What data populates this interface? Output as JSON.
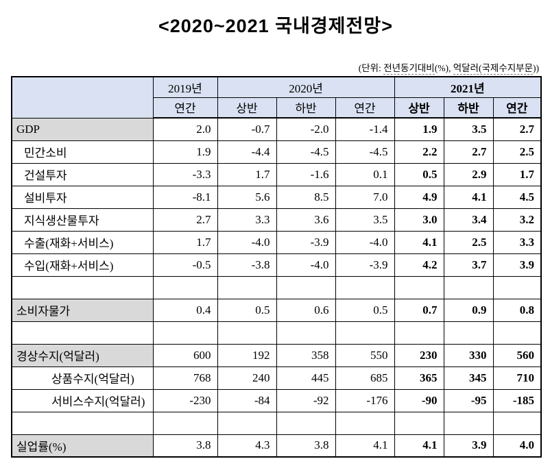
{
  "page": {
    "title": "<2020~2021  국내경제전망>",
    "unit_note": {
      "prefix": "(단위: ",
      "part1": "전년동기대비",
      "mid": "(%), ",
      "part2": "억달러(국제수지부문",
      "suffix": "))"
    }
  },
  "table": {
    "year_headers": [
      "2019년",
      "2020년",
      "2021년"
    ],
    "subheaders": [
      "연간",
      "상반",
      "하반",
      "연간",
      "상반",
      "하반",
      "연간"
    ],
    "colors": {
      "header_bg": "#d9e1f2",
      "shaded_label_bg": "#d9d9d9",
      "border": "#000000"
    },
    "rows": [
      {
        "label": "GDP",
        "indent": 0,
        "shaded": true,
        "spacer": false,
        "values": [
          "2.0",
          "-0.7",
          "-2.0",
          "-1.4",
          "1.9",
          "3.5",
          "2.7"
        ]
      },
      {
        "label": "민간소비",
        "indent": 1,
        "shaded": false,
        "spacer": false,
        "values": [
          "1.9",
          "-4.4",
          "-4.5",
          "-4.5",
          "2.2",
          "2.7",
          "2.5"
        ]
      },
      {
        "label": "건설투자",
        "indent": 1,
        "shaded": false,
        "spacer": false,
        "values": [
          "-3.3",
          "1.7",
          "-1.6",
          "0.1",
          "0.5",
          "2.9",
          "1.7"
        ]
      },
      {
        "label": "설비투자",
        "indent": 1,
        "shaded": false,
        "spacer": false,
        "values": [
          "-8.1",
          "5.6",
          "8.5",
          "7.0",
          "4.9",
          "4.1",
          "4.5"
        ]
      },
      {
        "label": "지식생산물투자",
        "indent": 1,
        "shaded": false,
        "spacer": false,
        "values": [
          "2.7",
          "3.3",
          "3.6",
          "3.5",
          "3.0",
          "3.4",
          "3.2"
        ]
      },
      {
        "label": "수출(재화+서비스)",
        "indent": 1,
        "shaded": false,
        "spacer": false,
        "values": [
          "1.7",
          "-4.0",
          "-3.9",
          "-4.0",
          "4.1",
          "2.5",
          "3.3"
        ]
      },
      {
        "label": "수입(재화+서비스)",
        "indent": 1,
        "shaded": false,
        "spacer": false,
        "values": [
          "-0.5",
          "-3.8",
          "-4.0",
          "-3.9",
          "4.2",
          "3.7",
          "3.9"
        ]
      },
      {
        "label": "",
        "indent": 0,
        "shaded": false,
        "spacer": true,
        "values": [
          "",
          "",
          "",
          "",
          "",
          "",
          ""
        ]
      },
      {
        "label": "소비자물가",
        "indent": 0,
        "shaded": true,
        "spacer": false,
        "values": [
          "0.4",
          "0.5",
          "0.6",
          "0.5",
          "0.7",
          "0.9",
          "0.8"
        ]
      },
      {
        "label": "",
        "indent": 0,
        "shaded": false,
        "spacer": true,
        "values": [
          "",
          "",
          "",
          "",
          "",
          "",
          ""
        ]
      },
      {
        "label": "경상수지(억달러)",
        "indent": 0,
        "shaded": true,
        "spacer": false,
        "values": [
          "600",
          "192",
          "358",
          "550",
          "230",
          "330",
          "560"
        ]
      },
      {
        "label": "상품수지(억달러)",
        "indent": 2,
        "shaded": false,
        "spacer": false,
        "values": [
          "768",
          "240",
          "445",
          "685",
          "365",
          "345",
          "710"
        ]
      },
      {
        "label": "서비스수지(억달러)",
        "indent": 2,
        "shaded": false,
        "spacer": false,
        "values": [
          "-230",
          "-84",
          "-92",
          "-176",
          "-90",
          "-95",
          "-185"
        ]
      },
      {
        "label": "",
        "indent": 0,
        "shaded": false,
        "spacer": true,
        "values": [
          "",
          "",
          "",
          "",
          "",
          "",
          ""
        ]
      },
      {
        "label": "실업률(%)",
        "indent": 0,
        "shaded": true,
        "spacer": false,
        "values": [
          "3.8",
          "4.3",
          "3.8",
          "4.1",
          "4.1",
          "3.9",
          "4.0"
        ]
      }
    ]
  }
}
